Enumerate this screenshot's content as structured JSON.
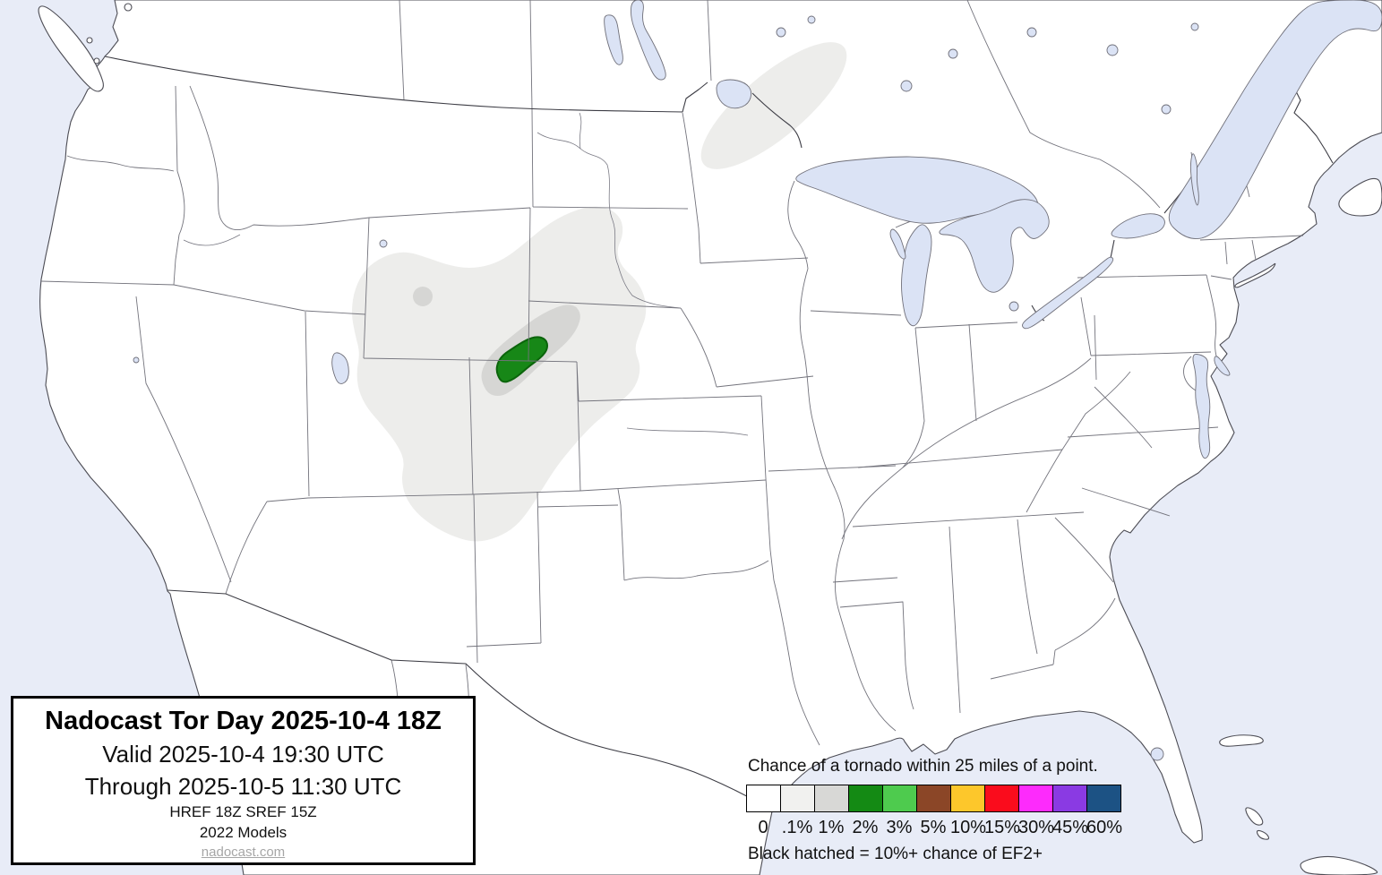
{
  "header": {
    "title": "Nadocast Tor Day 2025-10-4 18Z",
    "valid": "Valid 2025-10-4 19:30 UTC",
    "through": "Through 2025-10-5 11:30 UTC",
    "models_line1": "HREF 18Z SREF 15Z",
    "models_line2": "2022 Models",
    "site": "nadocast.com"
  },
  "legend": {
    "title": "Chance of a tornado within 25 miles of a point.",
    "note": "Black hatched = 10%+ chance of EF2+",
    "items": [
      {
        "label": "0",
        "color": "#ffffff"
      },
      {
        "label": ".1%",
        "color": "#f1f1ef"
      },
      {
        "label": "1%",
        "color": "#d8d8d6"
      },
      {
        "label": "2%",
        "color": "#148a14"
      },
      {
        "label": "3%",
        "color": "#4ecb4e"
      },
      {
        "label": "5%",
        "color": "#8b4627"
      },
      {
        "label": "10%",
        "color": "#fdc72b"
      },
      {
        "label": "15%",
        "color": "#fa0c1c"
      },
      {
        "label": "30%",
        "color": "#fd2bfc"
      },
      {
        "label": "45%",
        "color": "#8a3ae3"
      },
      {
        "label": "60%",
        "color": "#1c5284"
      }
    ]
  },
  "map": {
    "colors": {
      "ocean": "#e8ecf7",
      "land": "#ffffff",
      "lake": "#dbe3f5",
      "coast": "#4c4c54",
      "state": "#73737c",
      "border": "#3c3c44",
      "prob_01": "#ededeb",
      "prob_1": "#d6d6d4",
      "prob_2_fill": "#178717",
      "prob_2_stroke": "#0b640b"
    }
  }
}
